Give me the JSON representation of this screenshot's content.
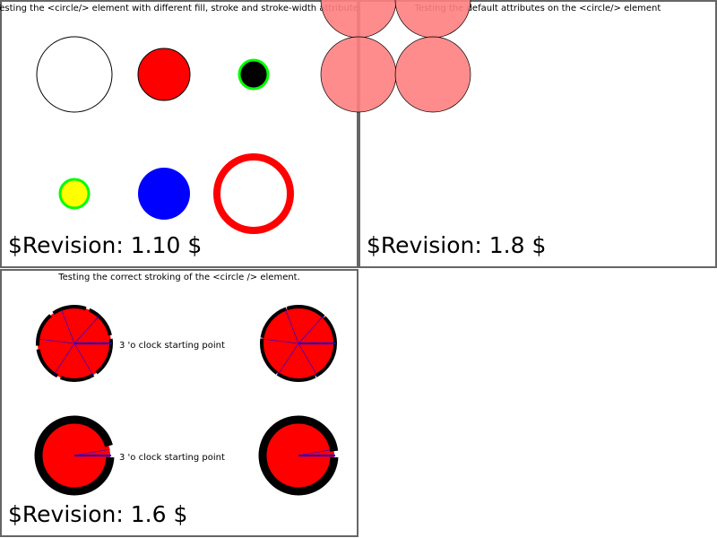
{
  "panels": [
    {
      "title": "Testing the <circle/> element with different fill, stroke and stroke-width attributes",
      "revision": "$Revision: 1.10 $"
    },
    {
      "title": "Testing the default attributes on the <circle/> element",
      "revision": "$Revision: 1.8 $"
    },
    {
      "title": "Testing the correct stroking of the <circle /> element.",
      "revision": "$Revision: 1.6 $",
      "label_top": "3 'o clock starting point",
      "label_bottom": "3 'o clock starting point"
    }
  ],
  "colors": {
    "red": "#ff0000",
    "green": "#00ff00",
    "blue": "#0000ff",
    "yellow": "#ffff00",
    "pink": "#ff8080",
    "border": "#666666"
  }
}
